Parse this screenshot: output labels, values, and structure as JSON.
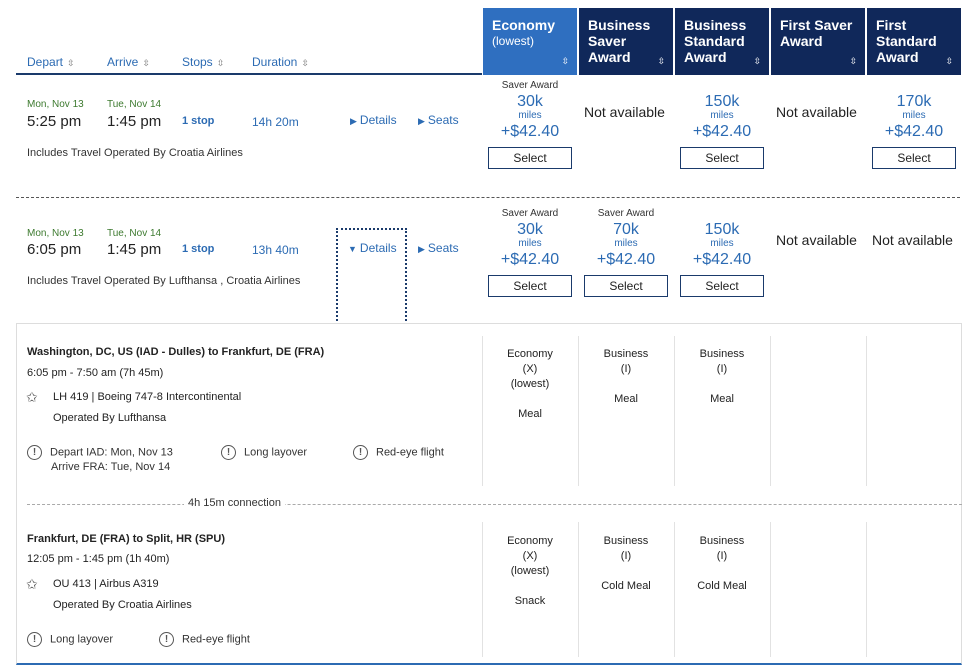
{
  "sort_headers": {
    "depart": "Depart",
    "arrive": "Arrive",
    "stops": "Stops",
    "duration": "Duration",
    "arrows": "⇳"
  },
  "cabins": [
    {
      "title": "Economy",
      "sub": "(lowest)",
      "active": true
    },
    {
      "title": "Business Saver Award",
      "sub": "",
      "active": false
    },
    {
      "title": "Business Standard Award",
      "sub": "",
      "active": false
    },
    {
      "title": "First Saver Award",
      "sub": "",
      "active": false
    },
    {
      "title": "First Standard Award",
      "sub": "",
      "active": false
    }
  ],
  "sort_glyph": "⇳",
  "flights": [
    {
      "depart_date": "Mon, Nov 13",
      "depart_time": "5:25 pm",
      "arrive_date": "Tue, Nov 14",
      "arrive_time": "1:45 pm",
      "stops": "1 stop",
      "duration": "14h 20m",
      "details": "Details",
      "seats": "Seats",
      "operated": "Includes Travel Operated By Croatia Airlines",
      "fares": [
        {
          "label": "Saver Award",
          "miles": "30k",
          "miles_label": "miles",
          "tax": "+$42.40",
          "select": "Select"
        },
        {
          "na": "Not available"
        },
        {
          "label": "",
          "miles": "150k",
          "miles_label": "miles",
          "tax": "+$42.40",
          "select": "Select"
        },
        {
          "na": "Not available"
        },
        {
          "label": "",
          "miles": "170k",
          "miles_label": "miles",
          "tax": "+$42.40",
          "select": "Select"
        }
      ]
    },
    {
      "depart_date": "Mon, Nov 13",
      "depart_time": "6:05 pm",
      "arrive_date": "Tue, Nov 14",
      "arrive_time": "1:45 pm",
      "stops": "1 stop",
      "duration": "13h 40m",
      "details": "Details",
      "seats": "Seats",
      "operated": "Includes Travel Operated By Lufthansa , Croatia Airlines",
      "fares": [
        {
          "label": "Saver Award",
          "miles": "30k",
          "miles_label": "miles",
          "tax": "+$42.40",
          "select": "Select"
        },
        {
          "label": "Saver Award",
          "miles": "70k",
          "miles_label": "miles",
          "tax": "+$42.40",
          "select": "Select"
        },
        {
          "label": "",
          "miles": "150k",
          "miles_label": "miles",
          "tax": "+$42.40",
          "select": "Select"
        },
        {
          "na": "Not available"
        },
        {
          "na": "Not available"
        }
      ]
    }
  ],
  "segments": [
    {
      "route": "Washington, DC, US (IAD - Dulles) to Frankfurt, DE (FRA)",
      "time": "6:05 pm - 7:50 am (7h 45m)",
      "flight": "LH 419",
      "aircraft": "Boeing 747-8 Intercontinental",
      "operated": "Operated By Lufthansa",
      "warnings": [
        "Depart IAD: Mon, Nov 13",
        "Arrive FRA: Tue, Nov 14",
        "Long layover",
        "Red-eye flight"
      ],
      "cabins": [
        {
          "cls": "Economy",
          "code": "(X)",
          "extra": "(lowest)",
          "meal": "Meal"
        },
        {
          "cls": "Business",
          "code": "(I)",
          "extra": "",
          "meal": "Meal"
        },
        {
          "cls": "Business",
          "code": "(I)",
          "extra": "",
          "meal": "Meal"
        }
      ]
    },
    {
      "route": "Frankfurt, DE (FRA) to Split, HR (SPU)",
      "time": "12:05 pm - 1:45 pm (1h 40m)",
      "flight": "OU 413",
      "aircraft": "Airbus A319",
      "operated": "Operated By Croatia Airlines",
      "warnings": [
        "Long layover",
        "Red-eye flight"
      ],
      "cabins": [
        {
          "cls": "Economy",
          "code": "(X)",
          "extra": "(lowest)",
          "meal": "Snack"
        },
        {
          "cls": "Business",
          "code": "(I)",
          "extra": "",
          "meal": "Cold Meal"
        },
        {
          "cls": "Business",
          "code": "(I)",
          "extra": "",
          "meal": "Cold Meal"
        }
      ]
    }
  ],
  "connection": "4h 15m connection",
  "icons": {
    "warning": "!",
    "star": "✩",
    "triangle_right": "▶",
    "triangle_down": "▼"
  }
}
